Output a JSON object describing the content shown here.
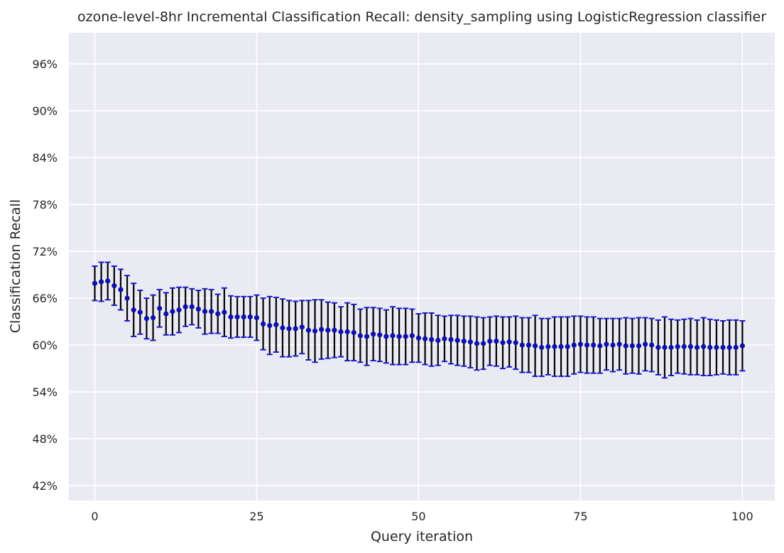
{
  "chart_data": {
    "type": "scatter",
    "title": "ozone-level-8hr Incremental Classification Recall: density_sampling using LogisticRegression classifier",
    "xlabel": "Query iteration",
    "ylabel": "Classification Recall",
    "xlim": [
      -4,
      105
    ],
    "ylim": [
      0.401,
      1.0
    ],
    "x_ticks": [
      0,
      25,
      50,
      75,
      100
    ],
    "y_ticks": [
      0.42,
      0.48,
      0.54,
      0.6,
      0.66,
      0.72,
      0.78,
      0.84,
      0.9,
      0.96
    ],
    "y_tick_format": "percent",
    "grid": true,
    "colors": {
      "background": "#eaeaf2",
      "grid": "#ffffff",
      "marker": "#1010b0",
      "errorbar": "#000000",
      "cap": "#1a1ad0"
    },
    "x": [
      0,
      1,
      2,
      3,
      4,
      5,
      6,
      7,
      8,
      9,
      10,
      11,
      12,
      13,
      14,
      15,
      16,
      17,
      18,
      19,
      20,
      21,
      22,
      23,
      24,
      25,
      26,
      27,
      28,
      29,
      30,
      31,
      32,
      33,
      34,
      35,
      36,
      37,
      38,
      39,
      40,
      41,
      42,
      43,
      44,
      45,
      46,
      47,
      48,
      49,
      50,
      51,
      52,
      53,
      54,
      55,
      56,
      57,
      58,
      59,
      60,
      61,
      62,
      63,
      64,
      65,
      66,
      67,
      68,
      69,
      70,
      71,
      72,
      73,
      74,
      75,
      76,
      77,
      78,
      79,
      80,
      81,
      82,
      83,
      84,
      85,
      86,
      87,
      88,
      89,
      90,
      91,
      92,
      93,
      94,
      95,
      96,
      97,
      98,
      99,
      100
    ],
    "y": [
      0.679,
      0.681,
      0.682,
      0.676,
      0.671,
      0.66,
      0.645,
      0.642,
      0.634,
      0.635,
      0.647,
      0.64,
      0.643,
      0.645,
      0.649,
      0.649,
      0.646,
      0.643,
      0.643,
      0.64,
      0.642,
      0.636,
      0.636,
      0.636,
      0.636,
      0.635,
      0.627,
      0.625,
      0.626,
      0.622,
      0.621,
      0.621,
      0.623,
      0.619,
      0.618,
      0.62,
      0.619,
      0.619,
      0.617,
      0.617,
      0.616,
      0.612,
      0.611,
      0.614,
      0.613,
      0.611,
      0.612,
      0.611,
      0.611,
      0.612,
      0.609,
      0.608,
      0.607,
      0.606,
      0.608,
      0.607,
      0.606,
      0.605,
      0.604,
      0.602,
      0.602,
      0.605,
      0.605,
      0.603,
      0.604,
      0.603,
      0.6,
      0.6,
      0.599,
      0.597,
      0.598,
      0.598,
      0.598,
      0.598,
      0.6,
      0.601,
      0.6,
      0.6,
      0.599,
      0.601,
      0.6,
      0.601,
      0.599,
      0.599,
      0.599,
      0.601,
      0.6,
      0.597,
      0.597,
      0.597,
      0.598,
      0.598,
      0.598,
      0.597,
      0.598,
      0.597,
      0.597,
      0.597,
      0.597,
      0.597,
      0.599
    ],
    "yerr": [
      0.022,
      0.025,
      0.024,
      0.025,
      0.026,
      0.029,
      0.034,
      0.028,
      0.026,
      0.029,
      0.024,
      0.027,
      0.03,
      0.029,
      0.025,
      0.023,
      0.024,
      0.029,
      0.028,
      0.025,
      0.031,
      0.027,
      0.026,
      0.026,
      0.026,
      0.029,
      0.033,
      0.037,
      0.035,
      0.037,
      0.036,
      0.035,
      0.034,
      0.038,
      0.04,
      0.038,
      0.036,
      0.035,
      0.032,
      0.037,
      0.036,
      0.034,
      0.037,
      0.034,
      0.034,
      0.034,
      0.037,
      0.036,
      0.036,
      0.034,
      0.031,
      0.033,
      0.034,
      0.032,
      0.029,
      0.031,
      0.032,
      0.032,
      0.033,
      0.034,
      0.033,
      0.031,
      0.032,
      0.033,
      0.032,
      0.034,
      0.035,
      0.035,
      0.039,
      0.037,
      0.036,
      0.038,
      0.038,
      0.038,
      0.037,
      0.036,
      0.036,
      0.036,
      0.035,
      0.033,
      0.034,
      0.033,
      0.036,
      0.035,
      0.036,
      0.034,
      0.034,
      0.035,
      0.039,
      0.036,
      0.034,
      0.035,
      0.036,
      0.035,
      0.037,
      0.036,
      0.035,
      0.034,
      0.035,
      0.035,
      0.032
    ]
  }
}
